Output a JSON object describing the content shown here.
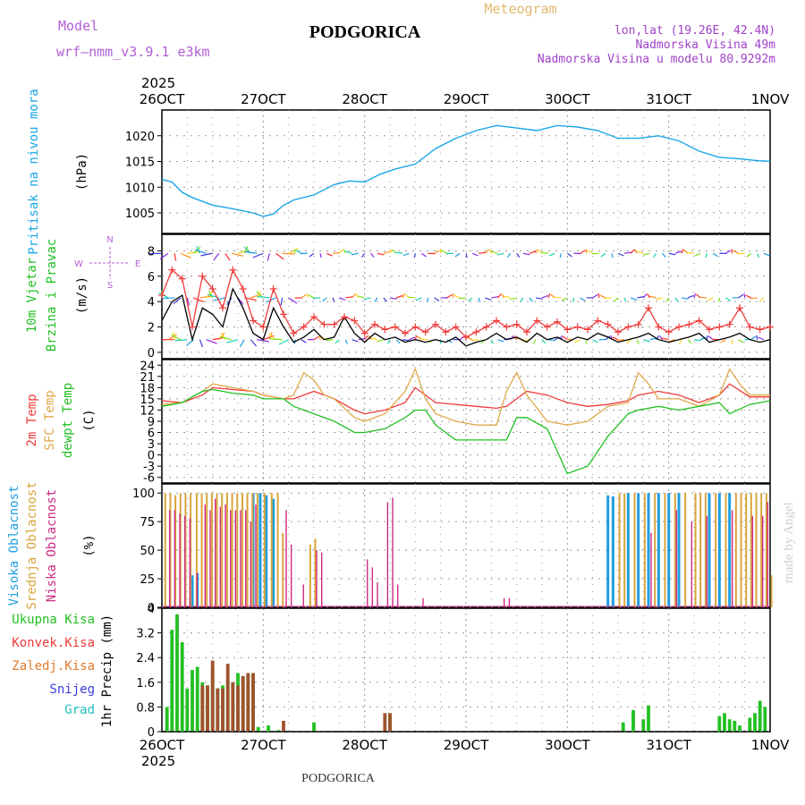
{
  "header": {
    "model_label": "Model",
    "model_name": "wrf—nmm_v3.9.1  e3km",
    "city": "PODGORICA",
    "meteogram": "Meteogram",
    "lonlat": "lon,lat (19.26E, 42.4N)",
    "altitude": "Nadmorska Visina 49m",
    "model_altitude": "Nadmorska Visina u modelu 80.9292m",
    "footer_city": "PODGORICA",
    "watermark": "made by Angel",
    "colors": {
      "model": "#b25fd6",
      "meteogram": "#e0b96b",
      "info": "#a040c8"
    }
  },
  "time_axis": {
    "year": "2025",
    "labels": [
      "26OCT",
      "27OCT",
      "28OCT",
      "29OCT",
      "30OCT",
      "31OCT",
      "1NOV"
    ],
    "days": 6
  },
  "chart_data": [
    {
      "id": "pressure",
      "type": "line",
      "ylabel": "Pritisak na nivou mora",
      "unit": "(hPa)",
      "ylim": [
        1001,
        1025
      ],
      "yticks": [
        1005,
        1010,
        1015,
        1020
      ],
      "x": [
        0,
        0.1,
        0.2,
        0.3,
        0.5,
        0.7,
        0.9,
        1.0,
        1.1,
        1.2,
        1.3,
        1.5,
        1.7,
        1.85,
        2.0,
        2.15,
        2.3,
        2.5,
        2.7,
        2.9,
        3.1,
        3.3,
        3.5,
        3.7,
        3.9,
        4.1,
        4.3,
        4.5,
        4.7,
        4.9,
        5.1,
        5.3,
        5.5,
        5.7,
        5.85,
        6.0
      ],
      "values": [
        1011.5,
        1011,
        1009,
        1008,
        1006.5,
        1005.8,
        1005,
        1004.3,
        1004.8,
        1006.5,
        1007.5,
        1008.5,
        1010.5,
        1011.2,
        1011,
        1012.5,
        1013.5,
        1014.5,
        1017.5,
        1019.5,
        1021,
        1022,
        1021.5,
        1021,
        1022,
        1021.7,
        1021,
        1019.5,
        1019.5,
        1020,
        1019,
        1017,
        1015.8,
        1015.5,
        1015.2,
        1015
      ],
      "color": "#1aa6e6"
    },
    {
      "id": "wind",
      "type": "line",
      "ylabel": "10m Vjetar Brzina i Pravac",
      "unit": "(m/s)",
      "ylim": [
        -0.5,
        9.3
      ],
      "yticks": [
        0,
        2,
        4,
        6,
        8
      ],
      "compass": {
        "n": "N",
        "s": "S",
        "e": "E",
        "w": "W"
      },
      "series": [
        {
          "name": "speed",
          "color": "#000000",
          "x": [
            0,
            0.1,
            0.2,
            0.3,
            0.4,
            0.5,
            0.6,
            0.7,
            0.8,
            0.9,
            1.0,
            1.1,
            1.2,
            1.3,
            1.4,
            1.5,
            1.6,
            1.7,
            1.8,
            1.9,
            2.0,
            2.1,
            2.2,
            2.3,
            2.4,
            2.5,
            2.6,
            2.7,
            2.8,
            2.9,
            3.0,
            3.1,
            3.2,
            3.3,
            3.4,
            3.5,
            3.6,
            3.7,
            3.8,
            3.9,
            4.0,
            4.1,
            4.2,
            4.3,
            4.4,
            4.5,
            4.6,
            4.7,
            4.8,
            4.9,
            5.0,
            5.1,
            5.2,
            5.3,
            5.4,
            5.5,
            5.6,
            5.7,
            5.8,
            5.9,
            6.0
          ],
          "values": [
            2.5,
            4.0,
            4.5,
            1.0,
            3.5,
            3.0,
            2.0,
            5.0,
            3.5,
            1.5,
            1.0,
            3.5,
            2.0,
            0.8,
            1.2,
            1.8,
            1.0,
            1.2,
            2.8,
            1.5,
            0.8,
            1.5,
            1.0,
            1.2,
            0.8,
            1.0,
            0.8,
            1.0,
            0.8,
            1.2,
            0.5,
            0.8,
            1.0,
            1.5,
            1.0,
            1.2,
            0.8,
            1.5,
            1.0,
            1.2,
            0.8,
            1.2,
            1.0,
            1.5,
            1.2,
            0.8,
            1.0,
            1.2,
            1.5,
            1.0,
            0.8,
            1.0,
            1.2,
            1.5,
            0.8,
            1.0,
            1.2,
            1.5,
            1.0,
            0.8,
            1.0
          ]
        },
        {
          "name": "gust",
          "color": "#ef3b3b",
          "x": [
            0,
            0.1,
            0.2,
            0.3,
            0.4,
            0.5,
            0.6,
            0.7,
            0.8,
            0.9,
            1.0,
            1.1,
            1.2,
            1.3,
            1.4,
            1.5,
            1.6,
            1.7,
            1.8,
            1.9,
            2.0,
            2.1,
            2.2,
            2.3,
            2.4,
            2.5,
            2.6,
            2.7,
            2.8,
            2.9,
            3.0,
            3.1,
            3.2,
            3.3,
            3.4,
            3.5,
            3.6,
            3.7,
            3.8,
            3.9,
            4.0,
            4.1,
            4.2,
            4.3,
            4.4,
            4.5,
            4.6,
            4.7,
            4.8,
            4.9,
            5.0,
            5.1,
            5.2,
            5.3,
            5.4,
            5.5,
            5.6,
            5.7,
            5.8,
            5.9,
            6.0
          ],
          "values": [
            4.5,
            6.5,
            5.8,
            2.0,
            6.0,
            5.0,
            3.5,
            6.5,
            5.0,
            2.5,
            2.0,
            5.0,
            3.0,
            1.5,
            2.0,
            2.8,
            2.2,
            2.2,
            2.8,
            2.5,
            1.5,
            2.2,
            1.8,
            2.0,
            1.5,
            2.0,
            1.6,
            2.2,
            1.6,
            2.0,
            1.2,
            1.6,
            2.0,
            2.5,
            2.0,
            2.2,
            1.6,
            2.5,
            2.0,
            2.4,
            1.8,
            2.0,
            1.8,
            2.5,
            2.2,
            1.6,
            2.0,
            2.2,
            3.5,
            2.0,
            1.6,
            2.0,
            2.2,
            2.5,
            1.8,
            2.0,
            2.2,
            3.5,
            2.0,
            1.8,
            2.0
          ]
        }
      ],
      "barb_rows": [
        1.0,
        4.3,
        7.8
      ]
    },
    {
      "id": "temperature",
      "type": "line",
      "ylabels": [
        "2m Temp",
        "SFC Temp",
        "dewpt Temp"
      ],
      "unit": "(C)",
      "ylim": [
        -7.5,
        25.5
      ],
      "yticks": [
        -6,
        -3,
        0,
        3,
        6,
        9,
        12,
        15,
        18,
        21,
        24
      ],
      "series": [
        {
          "name": "2m Temp",
          "color": "#ef3b3b",
          "x": [
            0,
            0.2,
            0.4,
            0.5,
            0.7,
            0.9,
            1.0,
            1.2,
            1.3,
            1.5,
            1.7,
            1.9,
            2.0,
            2.2,
            2.4,
            2.5,
            2.7,
            2.9,
            3.1,
            3.3,
            3.4,
            3.6,
            3.8,
            4.0,
            4.2,
            4.4,
            4.6,
            4.7,
            4.9,
            5.1,
            5.3,
            5.5,
            5.6,
            5.8,
            6.0
          ],
          "values": [
            14.5,
            14,
            16,
            18,
            17.5,
            17,
            16,
            15,
            15,
            17,
            15,
            12,
            11,
            12,
            14,
            18,
            14,
            13.5,
            13,
            12.5,
            13,
            17,
            16,
            14,
            13,
            13.5,
            14.5,
            16,
            17,
            16,
            14,
            16,
            19,
            15.5,
            15.5
          ],
          "labels": {}
        },
        {
          "name": "SFC Temp",
          "color": "#e0a84a",
          "x": [
            0,
            0.2,
            0.4,
            0.5,
            0.7,
            0.9,
            1.0,
            1.2,
            1.3,
            1.4,
            1.5,
            1.6,
            1.7,
            1.9,
            2.0,
            2.2,
            2.4,
            2.5,
            2.6,
            2.7,
            2.9,
            3.1,
            3.3,
            3.4,
            3.5,
            3.6,
            3.8,
            4.0,
            4.2,
            4.4,
            4.6,
            4.7,
            4.8,
            4.9,
            5.1,
            5.3,
            5.5,
            5.6,
            5.7,
            5.8,
            6.0
          ],
          "values": [
            13.5,
            14,
            17,
            19,
            18,
            17,
            16,
            15,
            16,
            22,
            20,
            16,
            15,
            10,
            9,
            11,
            17,
            23,
            15,
            11,
            9,
            8,
            8,
            17,
            22,
            16,
            9,
            8,
            9,
            13,
            14,
            22,
            19,
            15,
            15,
            13,
            16,
            23,
            19,
            16,
            16
          ]
        },
        {
          "name": "dewpt Temp",
          "color": "#22c022",
          "x": [
            0,
            0.2,
            0.4,
            0.5,
            0.7,
            0.9,
            1.0,
            1.2,
            1.3,
            1.5,
            1.7,
            1.9,
            2.0,
            2.2,
            2.4,
            2.5,
            2.6,
            2.7,
            2.9,
            3.1,
            3.2,
            3.4,
            3.5,
            3.6,
            3.8,
            4.0,
            4.2,
            4.4,
            4.6,
            4.7,
            4.9,
            5.1,
            5.3,
            5.5,
            5.6,
            5.8,
            6.0
          ],
          "values": [
            13,
            14,
            17,
            17.5,
            16.5,
            16,
            15,
            15,
            13,
            11,
            9,
            6,
            6,
            7,
            10,
            12,
            12,
            8,
            4,
            4,
            4,
            4,
            10,
            10,
            7,
            -5,
            -3,
            5,
            11,
            12,
            13,
            12,
            13,
            14,
            11,
            13.5,
            14.5
          ]
        }
      ]
    },
    {
      "id": "clouds",
      "type": "bar",
      "ylabels": [
        "Visoka Oblacnost",
        "Srednja Oblacnost",
        "Niska Oblacnost"
      ],
      "unit": "(%)",
      "ylim": [
        0,
        108
      ],
      "yticks": [
        0,
        25,
        50,
        75,
        100
      ],
      "series": [
        {
          "name": "Visoka Oblacnost",
          "color": "#1f9de0",
          "x": [
            0.3,
            0.35,
            0.9,
            0.97,
            1.03,
            1.1,
            4.4,
            4.45,
            4.6,
            4.7,
            4.8,
            4.9,
            5.0,
            5.1,
            5.4,
            5.5,
            5.6
          ],
          "values": [
            28,
            30,
            100,
            100,
            98,
            95,
            98,
            97,
            100,
            100,
            100,
            100,
            100,
            100,
            100,
            100,
            100
          ]
        },
        {
          "name": "Srednja Oblacnost",
          "color": "#d9a43d",
          "x": [
            0.02,
            0.07,
            0.12,
            0.17,
            0.22,
            0.27,
            0.33,
            0.38,
            0.43,
            0.48,
            0.53,
            0.58,
            0.63,
            0.68,
            0.73,
            0.78,
            0.83,
            0.88,
            0.93,
            1.0,
            1.07,
            1.13,
            1.18,
            1.45,
            1.5,
            4.5,
            4.55,
            4.65,
            4.75,
            4.85,
            4.95,
            5.05,
            5.15,
            5.25,
            5.3,
            5.35,
            5.45,
            5.55,
            5.65,
            5.7,
            5.75,
            5.8,
            5.85,
            5.9,
            5.95,
            6.0
          ],
          "values": [
            100,
            100,
            98,
            100,
            100,
            100,
            100,
            100,
            100,
            100,
            100,
            100,
            100,
            100,
            100,
            100,
            100,
            100,
            100,
            100,
            100,
            100,
            65,
            55,
            60,
            100,
            100,
            100,
            100,
            100,
            100,
            100,
            100,
            100,
            100,
            100,
            100,
            100,
            100,
            100,
            100,
            100,
            100,
            100,
            100,
            28
          ]
        },
        {
          "name": "Niska Oblacnost",
          "color": "#cc2b86",
          "x": [
            0.05,
            0.1,
            0.15,
            0.2,
            0.25,
            0.32,
            0.4,
            0.45,
            0.5,
            0.55,
            0.6,
            0.65,
            0.7,
            0.75,
            0.8,
            0.85,
            0.9,
            1.2,
            1.25,
            1.37,
            1.5,
            1.55,
            2.0,
            2.05,
            2.1,
            2.2,
            2.25,
            2.3,
            2.55,
            3.35,
            3.4,
            4.8,
            5.05,
            5.2,
            5.35,
            5.6,
            5.8,
            5.9,
            5.95
          ],
          "values": [
            85,
            85,
            82,
            80,
            78,
            30,
            90,
            85,
            95,
            88,
            90,
            85,
            85,
            85,
            85,
            75,
            90,
            85,
            55,
            20,
            50,
            48,
            42,
            35,
            22,
            92,
            96,
            20,
            8,
            8,
            8,
            65,
            85,
            75,
            80,
            85,
            80,
            80,
            92
          ]
        }
      ]
    },
    {
      "id": "precip",
      "type": "bar",
      "ylabels": [
        "Ukupna Kisa",
        "Konvek.Kisa",
        "Zaledj.Kisa",
        "Snijeg",
        "Grad"
      ],
      "ylabel_colors": [
        "#22c022",
        "#ef3b3b",
        "#e07a2c",
        "#3b3bdc",
        "#1fc0c0"
      ],
      "unit": "1hr Precip (mm)",
      "ylim": [
        0,
        4
      ],
      "yticks": [
        0,
        0.8,
        1.6,
        2.4,
        3.2,
        4
      ],
      "series": [
        {
          "name": "Ukupna Kisa",
          "color": "#22c022",
          "x": [
            0.05,
            0.1,
            0.15,
            0.2,
            0.25,
            0.3,
            0.35,
            0.4,
            0.45,
            0.5,
            0.55,
            0.6,
            0.65,
            0.7,
            0.75,
            0.8,
            0.85,
            0.9,
            0.95,
            1.05,
            1.15,
            1.5,
            2.25,
            4.55,
            4.65,
            4.75,
            4.8,
            5.5,
            5.55,
            5.6,
            5.65,
            5.7,
            5.8,
            5.85,
            5.9,
            5.95
          ],
          "values": [
            0.8,
            3.3,
            3.8,
            2.9,
            1.4,
            2.0,
            2.1,
            1.6,
            1.5,
            2.1,
            1.4,
            1.5,
            1.7,
            1.6,
            1.9,
            1.8,
            1.9,
            1.9,
            0.15,
            0.2,
            0.05,
            0.3,
            0.6,
            0.3,
            0.7,
            0.4,
            0.85,
            0.5,
            0.6,
            0.4,
            0.35,
            0.2,
            0.45,
            0.6,
            1.0,
            0.8
          ]
        },
        {
          "name": "Konvek.Kisa",
          "color": "#a0522d",
          "x": [
            0.4,
            0.45,
            0.5,
            0.55,
            0.6,
            0.65,
            0.7,
            0.75,
            0.8,
            0.85,
            0.9,
            1.2,
            2.2,
            2.25
          ],
          "values": [
            1.5,
            1.5,
            2.3,
            1.4,
            1.4,
            2.2,
            1.6,
            1.5,
            1.8,
            1.9,
            1.9,
            0.35,
            0.6,
            0.6
          ]
        }
      ]
    }
  ]
}
